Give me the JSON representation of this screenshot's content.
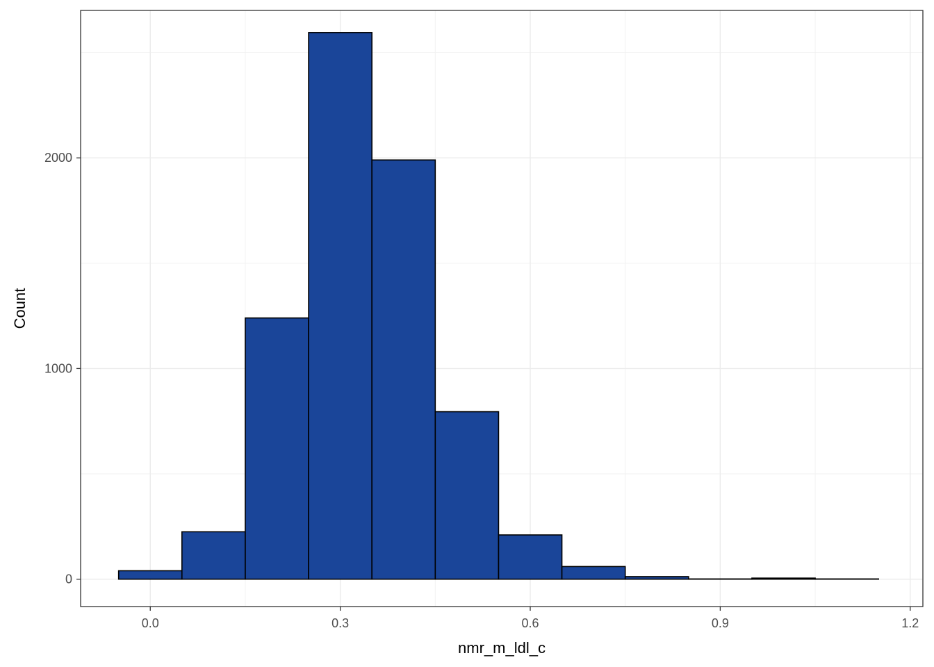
{
  "chart_data": {
    "type": "bar",
    "title": "",
    "xlabel": "nmr_m_ldl_c",
    "ylabel": "Count",
    "xlim": [
      -0.11,
      1.22
    ],
    "ylim": [
      -130,
      2700
    ],
    "x_ticks": [
      0.0,
      0.3,
      0.6,
      0.9,
      1.2
    ],
    "x_tick_labels": [
      "0.0",
      "0.3",
      "0.6",
      "0.9",
      "1.2"
    ],
    "y_ticks": [
      0,
      1000,
      2000
    ],
    "y_tick_labels": [
      "0",
      "1000",
      "2000"
    ],
    "y_minor_ticks": [
      500,
      1500,
      2500
    ],
    "x_minor_ticks": [
      0.15,
      0.45,
      0.75,
      1.05
    ],
    "bin_width": 0.1,
    "bins": [
      {
        "x_start": -0.05,
        "x_end": 0.05,
        "count": 40
      },
      {
        "x_start": 0.05,
        "x_end": 0.15,
        "count": 225
      },
      {
        "x_start": 0.15,
        "x_end": 0.25,
        "count": 1240
      },
      {
        "x_start": 0.25,
        "x_end": 0.35,
        "count": 2595
      },
      {
        "x_start": 0.35,
        "x_end": 0.45,
        "count": 1990
      },
      {
        "x_start": 0.45,
        "x_end": 0.55,
        "count": 795
      },
      {
        "x_start": 0.55,
        "x_end": 0.65,
        "count": 210
      },
      {
        "x_start": 0.65,
        "x_end": 0.75,
        "count": 60
      },
      {
        "x_start": 0.75,
        "x_end": 0.85,
        "count": 12
      },
      {
        "x_start": 0.85,
        "x_end": 0.95,
        "count": 1
      },
      {
        "x_start": 0.95,
        "x_end": 1.05,
        "count": 5
      },
      {
        "x_start": 1.05,
        "x_end": 1.15,
        "count": 1
      }
    ],
    "grid": true,
    "legend": "none"
  },
  "colors": {
    "bar_fill": "#1a4599",
    "bar_stroke": "#000000",
    "grid_major": "#ebebeb",
    "grid_minor": "#f2f2f2",
    "panel_border": "#333333",
    "tick_label": "#4d4d4d",
    "axis_title": "#000000",
    "background": "#ffffff"
  }
}
